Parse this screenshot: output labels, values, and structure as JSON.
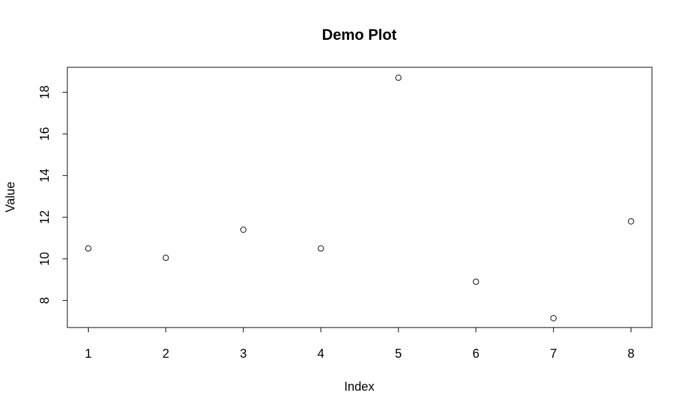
{
  "chart_data": {
    "type": "scatter",
    "title": "Demo Plot",
    "xlabel": "Index",
    "ylabel": "Value",
    "x": [
      1,
      2,
      3,
      4,
      5,
      6,
      7,
      8
    ],
    "y": [
      10.5,
      10.05,
      11.4,
      10.5,
      18.7,
      8.9,
      7.15,
      11.8
    ],
    "xlim": [
      0.73,
      8.27
    ],
    "ylim": [
      6.7,
      19.2
    ],
    "x_ticks": [
      "1",
      "2",
      "3",
      "4",
      "5",
      "6",
      "7",
      "8"
    ],
    "y_ticks": [
      "8",
      "10",
      "12",
      "14",
      "16",
      "18"
    ],
    "marker": "open-circle",
    "grid": false,
    "legend": "none",
    "colors": {
      "marker": "#000000",
      "axis": "#000000",
      "background": "#ffffff"
    }
  }
}
